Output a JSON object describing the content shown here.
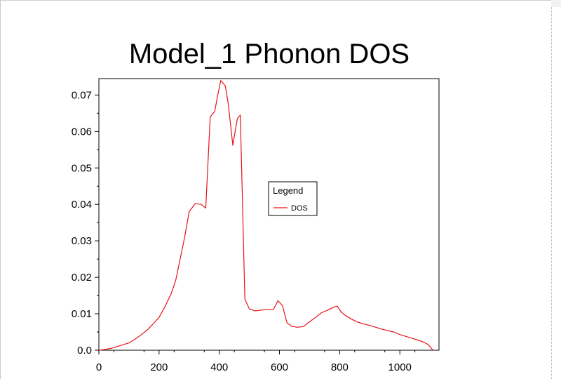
{
  "chart_data": {
    "type": "line",
    "title": "Model_1 Phonon DOS",
    "xlabel": "",
    "ylabel": "",
    "xlim": [
      0,
      1130
    ],
    "ylim": [
      0,
      0.0745
    ],
    "x_ticks": [
      0,
      200,
      400,
      600,
      800,
      1000
    ],
    "x_tick_labels": [
      "0",
      "200",
      "400",
      "600",
      "800",
      "1000"
    ],
    "y_ticks": [
      0.0,
      0.01,
      0.02,
      0.03,
      0.04,
      0.05,
      0.06,
      0.07
    ],
    "y_tick_labels": [
      "0.0",
      "0.01",
      "0.02",
      "0.03",
      "0.04",
      "0.05",
      "0.06",
      "0.07"
    ],
    "grid": false,
    "legend": {
      "title": "Legend",
      "placement": "center-right",
      "entries": [
        "DOS"
      ]
    },
    "colors": {
      "series": "#e8121a",
      "axis": "#000000"
    },
    "series": [
      {
        "name": "DOS",
        "x": [
          0,
          20,
          40,
          60,
          80,
          100,
          120,
          140,
          160,
          180,
          200,
          220,
          240,
          255,
          270,
          285,
          300,
          320,
          340,
          355,
          370,
          385,
          395,
          405,
          420,
          430,
          445,
          460,
          470,
          485,
          500,
          520,
          560,
          580,
          595,
          610,
          625,
          640,
          660,
          680,
          700,
          720,
          740,
          760,
          780,
          792,
          805,
          820,
          840,
          860,
          880,
          900,
          940,
          980,
          1000,
          1020,
          1040,
          1060,
          1080,
          1095,
          1110
        ],
        "y": [
          0.0,
          0.0002,
          0.0005,
          0.001,
          0.0015,
          0.002,
          0.003,
          0.0042,
          0.0055,
          0.0072,
          0.009,
          0.012,
          0.0155,
          0.019,
          0.025,
          0.031,
          0.038,
          0.0402,
          0.04,
          0.039,
          0.064,
          0.0655,
          0.07,
          0.074,
          0.0725,
          0.0675,
          0.0562,
          0.0635,
          0.0645,
          0.014,
          0.0113,
          0.0108,
          0.0112,
          0.0112,
          0.0136,
          0.0122,
          0.0075,
          0.0066,
          0.0063,
          0.0065,
          0.0078,
          0.009,
          0.0103,
          0.011,
          0.0118,
          0.0121,
          0.0105,
          0.0095,
          0.0085,
          0.0077,
          0.0072,
          0.0068,
          0.0058,
          0.005,
          0.0043,
          0.0038,
          0.0033,
          0.0028,
          0.0022,
          0.0015,
          0.0
        ]
      }
    ]
  }
}
